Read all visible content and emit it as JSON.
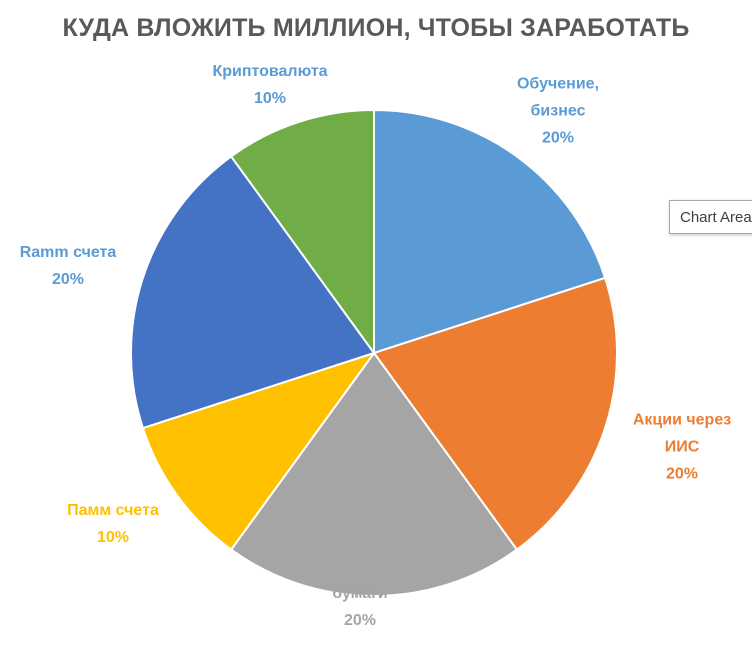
{
  "chart_data": {
    "type": "pie",
    "title": "КУДА ВЛОЖИТЬ МИЛЛИОН, ЧТОБЫ ЗАРАБОТАТЬ",
    "slices": [
      {
        "lines": [
          "Обучение,",
          "бизнес"
        ],
        "percent_label": "20%",
        "value": 20,
        "color": "#5B9BD5"
      },
      {
        "lines": [
          "Акции через",
          "ИИС"
        ],
        "percent_label": "20%",
        "value": 20,
        "color": "#ED7D31"
      },
      {
        "lines": [
          "бумаги"
        ],
        "percent_label": "20%",
        "value": 20,
        "color": "#A5A5A5"
      },
      {
        "lines": [
          "Памм счета"
        ],
        "percent_label": "10%",
        "value": 10,
        "color": "#FFC000"
      },
      {
        "lines": [
          "Ramm счета"
        ],
        "percent_label": "20%",
        "value": 20,
        "color": "#4472C4"
      },
      {
        "lines": [
          "Криптовалюта"
        ],
        "percent_label": "10%",
        "value": 10,
        "color": "#70AD47"
      }
    ],
    "legend": "none"
  },
  "tooltip": {
    "text": "Chart Area"
  }
}
